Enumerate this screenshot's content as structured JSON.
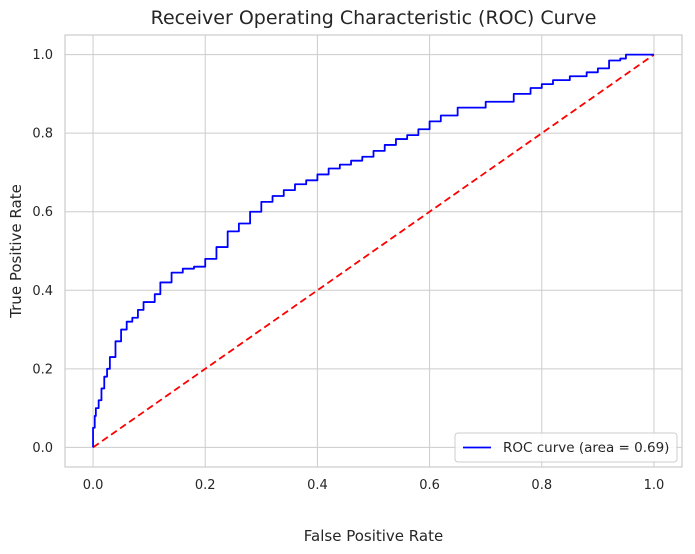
{
  "chart_data": {
    "type": "line",
    "title": "Receiver Operating Characteristic (ROC) Curve",
    "xlabel": "False Positive Rate",
    "ylabel": "True Positive Rate",
    "xlim": [
      -0.05,
      1.05
    ],
    "ylim": [
      -0.05,
      1.05
    ],
    "xticks": [
      0.0,
      0.2,
      0.4,
      0.6,
      0.8,
      1.0
    ],
    "yticks": [
      0.0,
      0.2,
      0.4,
      0.6,
      0.8,
      1.0
    ],
    "xtick_labels": [
      "0.0",
      "0.2",
      "0.4",
      "0.6",
      "0.8",
      "1.0"
    ],
    "ytick_labels": [
      "0.0",
      "0.2",
      "0.4",
      "0.6",
      "0.8",
      "1.0"
    ],
    "grid": true,
    "legend_position": "lower-right",
    "series": [
      {
        "name": "ROC curve (area = 0.69)",
        "color": "#0000ff",
        "style": "solid",
        "x": [
          0.0,
          0.0,
          0.003,
          0.005,
          0.01,
          0.015,
          0.02,
          0.025,
          0.03,
          0.04,
          0.05,
          0.06,
          0.07,
          0.08,
          0.09,
          0.1,
          0.11,
          0.12,
          0.14,
          0.16,
          0.18,
          0.2,
          0.22,
          0.24,
          0.26,
          0.28,
          0.3,
          0.32,
          0.34,
          0.36,
          0.38,
          0.4,
          0.42,
          0.44,
          0.46,
          0.48,
          0.5,
          0.52,
          0.54,
          0.56,
          0.58,
          0.6,
          0.62,
          0.65,
          0.7,
          0.75,
          0.78,
          0.8,
          0.82,
          0.85,
          0.88,
          0.9,
          0.92,
          0.94,
          0.95,
          0.97,
          1.0
        ],
        "y": [
          0.0,
          0.03,
          0.05,
          0.08,
          0.1,
          0.12,
          0.15,
          0.18,
          0.2,
          0.23,
          0.27,
          0.3,
          0.32,
          0.33,
          0.35,
          0.37,
          0.37,
          0.39,
          0.42,
          0.445,
          0.455,
          0.46,
          0.48,
          0.51,
          0.55,
          0.57,
          0.6,
          0.625,
          0.64,
          0.655,
          0.67,
          0.68,
          0.695,
          0.71,
          0.72,
          0.73,
          0.74,
          0.755,
          0.77,
          0.785,
          0.795,
          0.81,
          0.83,
          0.845,
          0.865,
          0.88,
          0.9,
          0.915,
          0.925,
          0.935,
          0.945,
          0.955,
          0.965,
          0.985,
          0.99,
          1.0,
          1.0
        ]
      },
      {
        "name": "",
        "color": "#ff0000",
        "style": "dashed",
        "x": [
          0.0,
          1.0
        ],
        "y": [
          0.0,
          1.0
        ]
      }
    ]
  }
}
